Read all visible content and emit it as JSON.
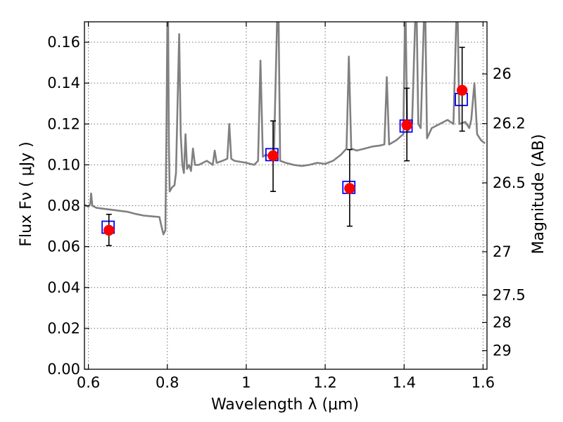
{
  "chart_data": {
    "type": "scatter",
    "x_axis": {
      "label": "Wavelength  λ (μm)",
      "range": [
        0.59,
        1.61
      ],
      "ticks": [
        0.6,
        0.8,
        1.0,
        1.2,
        1.4,
        1.6
      ],
      "tick_labels": [
        "0.6",
        "0.8",
        "1",
        "1.2",
        "1.4",
        "1.6"
      ]
    },
    "y_axis_left": {
      "label": "Flux  Fν  ( μJy )",
      "range": [
        0.0,
        0.17
      ],
      "ticks": [
        0.0,
        0.02,
        0.04,
        0.06,
        0.08,
        0.1,
        0.12,
        0.14,
        0.16
      ],
      "tick_labels": [
        "0.00",
        "0.02",
        "0.04",
        "0.06",
        "0.08",
        "0.10",
        "0.12",
        "0.14",
        "0.16"
      ]
    },
    "y_axis_right": {
      "label": "Magnitude (AB)",
      "ticks": [
        {
          "label": "26",
          "flux": 0.1445
        },
        {
          "label": "26.2",
          "flux": 0.1202
        },
        {
          "label": "26.5",
          "flux": 0.0912
        },
        {
          "label": "27",
          "flux": 0.0575
        },
        {
          "label": "27.5",
          "flux": 0.0363
        },
        {
          "label": "28",
          "flux": 0.0229
        },
        {
          "label": "29",
          "flux": 0.0091
        }
      ]
    },
    "grid": true,
    "series": [
      {
        "kind": "line",
        "color": "#808080",
        "points": [
          [
            0.59,
            0.0805
          ],
          [
            0.6,
            0.0795
          ],
          [
            0.605,
            0.081
          ],
          [
            0.607,
            0.086
          ],
          [
            0.61,
            0.08
          ],
          [
            0.62,
            0.079
          ],
          [
            0.64,
            0.0785
          ],
          [
            0.66,
            0.078
          ],
          [
            0.68,
            0.0775
          ],
          [
            0.7,
            0.077
          ],
          [
            0.72,
            0.076
          ],
          [
            0.74,
            0.0752
          ],
          [
            0.76,
            0.0748
          ],
          [
            0.78,
            0.0745
          ],
          [
            0.785,
            0.07
          ],
          [
            0.79,
            0.066
          ],
          [
            0.795,
            0.068
          ],
          [
            0.798,
            0.12
          ],
          [
            0.8,
            0.17
          ],
          [
            0.802,
            0.17
          ],
          [
            0.804,
            0.11
          ],
          [
            0.806,
            0.087
          ],
          [
            0.812,
            0.089
          ],
          [
            0.818,
            0.09
          ],
          [
            0.822,
            0.096
          ],
          [
            0.826,
            0.13
          ],
          [
            0.83,
            0.164
          ],
          [
            0.834,
            0.115
          ],
          [
            0.838,
            0.1
          ],
          [
            0.842,
            0.096
          ],
          [
            0.846,
            0.115
          ],
          [
            0.85,
            0.098
          ],
          [
            0.855,
            0.1
          ],
          [
            0.86,
            0.097
          ],
          [
            0.865,
            0.108
          ],
          [
            0.87,
            0.1
          ],
          [
            0.88,
            0.1
          ],
          [
            0.9,
            0.102
          ],
          [
            0.915,
            0.1
          ],
          [
            0.92,
            0.107
          ],
          [
            0.925,
            0.101
          ],
          [
            0.94,
            0.102
          ],
          [
            0.952,
            0.103
          ],
          [
            0.957,
            0.12
          ],
          [
            0.962,
            0.103
          ],
          [
            0.97,
            0.102
          ],
          [
            1.0,
            0.101
          ],
          [
            1.02,
            0.1
          ],
          [
            1.03,
            0.102
          ],
          [
            1.036,
            0.151
          ],
          [
            1.042,
            0.104
          ],
          [
            1.05,
            0.105
          ],
          [
            1.06,
            0.104
          ],
          [
            1.07,
            0.105
          ],
          [
            1.078,
            0.17
          ],
          [
            1.082,
            0.17
          ],
          [
            1.086,
            0.102
          ],
          [
            1.1,
            0.101
          ],
          [
            1.12,
            0.1
          ],
          [
            1.14,
            0.0995
          ],
          [
            1.16,
            0.1
          ],
          [
            1.18,
            0.101
          ],
          [
            1.2,
            0.1005
          ],
          [
            1.22,
            0.102
          ],
          [
            1.24,
            0.105
          ],
          [
            1.254,
            0.108
          ],
          [
            1.26,
            0.153
          ],
          [
            1.266,
            0.108
          ],
          [
            1.28,
            0.107
          ],
          [
            1.3,
            0.108
          ],
          [
            1.32,
            0.109
          ],
          [
            1.34,
            0.1095
          ],
          [
            1.35,
            0.11
          ],
          [
            1.356,
            0.143
          ],
          [
            1.362,
            0.11
          ],
          [
            1.38,
            0.112
          ],
          [
            1.398,
            0.115
          ],
          [
            1.402,
            0.17
          ],
          [
            1.404,
            0.17
          ],
          [
            1.408,
            0.116
          ],
          [
            1.42,
            0.12
          ],
          [
            1.428,
            0.17
          ],
          [
            1.432,
            0.17
          ],
          [
            1.436,
            0.12
          ],
          [
            1.442,
            0.118
          ],
          [
            1.45,
            0.17
          ],
          [
            1.454,
            0.17
          ],
          [
            1.458,
            0.113
          ],
          [
            1.47,
            0.118
          ],
          [
            1.49,
            0.12
          ],
          [
            1.51,
            0.122
          ],
          [
            1.525,
            0.12
          ],
          [
            1.532,
            0.17
          ],
          [
            1.536,
            0.17
          ],
          [
            1.54,
            0.12
          ],
          [
            1.555,
            0.121
          ],
          [
            1.565,
            0.118
          ],
          [
            1.57,
            0.122
          ],
          [
            1.578,
            0.14
          ],
          [
            1.585,
            0.115
          ],
          [
            1.595,
            0.112
          ],
          [
            1.605,
            0.1105
          ]
        ]
      },
      {
        "kind": "squares",
        "edge_color": "#0000ff",
        "points": [
          {
            "x": 0.65,
            "y": 0.0695
          },
          {
            "x": 1.065,
            "y": 0.105
          },
          {
            "x": 1.26,
            "y": 0.089
          },
          {
            "x": 1.405,
            "y": 0.119
          },
          {
            "x": 1.545,
            "y": 0.132
          }
        ]
      },
      {
        "kind": "points_with_errors",
        "color": "#ff0000",
        "points": [
          {
            "x": 0.652,
            "y": 0.068,
            "err_low": 0.0605,
            "err_high": 0.0758
          },
          {
            "x": 1.068,
            "y": 0.1045,
            "err_low": 0.087,
            "err_high": 0.1215
          },
          {
            "x": 1.262,
            "y": 0.0885,
            "err_low": 0.07,
            "err_high": 0.1075
          },
          {
            "x": 1.407,
            "y": 0.1195,
            "err_low": 0.102,
            "err_high": 0.1375
          },
          {
            "x": 1.547,
            "y": 0.1365,
            "err_low": 0.1165,
            "err_high": 0.1575
          }
        ]
      }
    ]
  }
}
